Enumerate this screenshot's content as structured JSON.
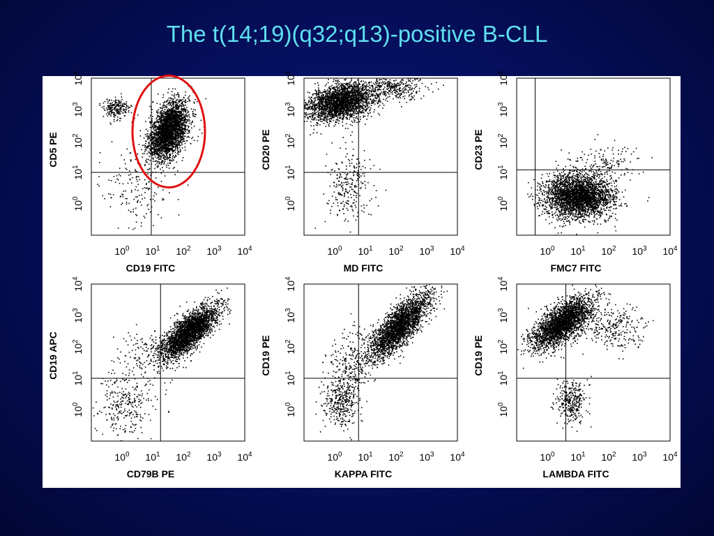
{
  "slide": {
    "title": "The t(14;19)(q32;q13)-positive B-CLL"
  },
  "colors": {
    "background": "#061060",
    "title": "#5fe0f0",
    "panel": "#ffffff",
    "dots": "#000000",
    "gate_ellipse": "#e01010"
  },
  "chart_data": [
    {
      "type": "scatter",
      "title": "",
      "xlabel": "CD19 FITC",
      "ylabel": "CD5 PE",
      "xlim": [
        0.1,
        10000
      ],
      "ylim": [
        0.1,
        10000
      ],
      "x_ticks": [
        "10^0",
        "10^1",
        "10^2",
        "10^3",
        "10^4"
      ],
      "y_ticks": [
        "10^0",
        "10^1",
        "10^2",
        "10^3",
        "10^4"
      ],
      "xscale": "log",
      "yscale": "log",
      "quadrant_gates": {
        "x": 9,
        "y": 10
      },
      "clusters": [
        {
          "x_center": 32,
          "y_center": 220,
          "x_spread": 0.32,
          "y_spread": 0.42,
          "tilt": 0.6,
          "weight": 0.88
        },
        {
          "x_center": 0.6,
          "y_center": 1200,
          "x_spread": 0.22,
          "y_spread": 0.15,
          "tilt": 0,
          "weight": 0.07
        },
        {
          "x_center": 3,
          "y_center": 3,
          "x_spread": 0.6,
          "y_spread": 0.6,
          "tilt": 0,
          "weight": 0.05
        }
      ],
      "annotation": {
        "shape": "ellipse",
        "color": "red",
        "center": [
          30,
          180
        ],
        "note": "gated B-CLL population"
      }
    },
    {
      "type": "scatter",
      "title": "",
      "xlabel": "MD FITC",
      "ylabel": "CD20 PE",
      "xlim": [
        0.1,
        10000
      ],
      "ylim": [
        0.1,
        10000
      ],
      "x_ticks": [
        "10^0",
        "10^1",
        "10^2",
        "10^3",
        "10^4"
      ],
      "y_ticks": [
        "10^0",
        "10^1",
        "10^2",
        "10^3",
        "10^4"
      ],
      "xscale": "log",
      "yscale": "log",
      "quadrant_gates": {
        "x": 6,
        "y": 10
      },
      "clusters": [
        {
          "x_center": 1.5,
          "y_center": 1800,
          "x_spread": 0.55,
          "y_spread": 0.28,
          "tilt": 0.2,
          "weight": 0.82
        },
        {
          "x_center": 3,
          "y_center": 4,
          "x_spread": 0.35,
          "y_spread": 0.55,
          "tilt": 0,
          "weight": 0.08
        },
        {
          "x_center": 100,
          "y_center": 5000,
          "x_spread": 0.45,
          "y_spread": 0.2,
          "tilt": 0,
          "weight": 0.1
        }
      ]
    },
    {
      "type": "scatter",
      "title": "",
      "xlabel": "FMC7 FITC",
      "ylabel": "CD23 PE",
      "xlim": [
        0.1,
        10000
      ],
      "ylim": [
        0.1,
        10000
      ],
      "x_ticks": [
        "10^0",
        "10^1",
        "10^2",
        "10^3",
        "10^4"
      ],
      "y_ticks": [
        "10^0",
        "10^1",
        "10^2",
        "10^3",
        "10^4"
      ],
      "xscale": "log",
      "yscale": "log",
      "quadrant_gates": {
        "x": 0.4,
        "y": 12
      },
      "clusters": [
        {
          "x_center": 10,
          "y_center": 1.8,
          "x_spread": 0.55,
          "y_spread": 0.35,
          "tilt": 0,
          "weight": 0.95
        },
        {
          "x_center": 80,
          "y_center": 20,
          "x_spread": 0.5,
          "y_spread": 0.35,
          "tilt": 0,
          "weight": 0.05
        }
      ]
    },
    {
      "type": "scatter",
      "title": "",
      "xlabel": "CD79B PE",
      "ylabel": "CD19 APC",
      "xlim": [
        0.1,
        10000
      ],
      "ylim": [
        0.1,
        10000
      ],
      "x_ticks": [
        "10^0",
        "10^1",
        "10^2",
        "10^3",
        "10^4"
      ],
      "y_ticks": [
        "10^0",
        "10^1",
        "10^2",
        "10^3",
        "10^4"
      ],
      "xscale": "log",
      "yscale": "log",
      "quadrant_gates": {
        "x": 18,
        "y": 10
      },
      "clusters": [
        {
          "x_center": 150,
          "y_center": 300,
          "x_spread": 0.45,
          "y_spread": 0.28,
          "tilt": 0.7,
          "weight": 0.86
        },
        {
          "x_center": 1.2,
          "y_center": 1.5,
          "x_spread": 0.45,
          "y_spread": 0.5,
          "tilt": 0,
          "weight": 0.09
        },
        {
          "x_center": 8,
          "y_center": 60,
          "x_spread": 0.5,
          "y_spread": 0.4,
          "tilt": 0,
          "weight": 0.05
        }
      ]
    },
    {
      "type": "scatter",
      "title": "",
      "xlabel": "KAPPA FITC",
      "ylabel": "CD19 PE",
      "xlim": [
        0.1,
        10000
      ],
      "ylim": [
        0.1,
        10000
      ],
      "x_ticks": [
        "10^0",
        "10^1",
        "10^2",
        "10^3",
        "10^4"
      ],
      "y_ticks": [
        "10^0",
        "10^1",
        "10^2",
        "10^3",
        "10^4"
      ],
      "xscale": "log",
      "yscale": "log",
      "quadrant_gates": {
        "x": 6,
        "y": 10
      },
      "clusters": [
        {
          "x_center": 120,
          "y_center": 450,
          "x_spread": 0.5,
          "y_spread": 0.32,
          "tilt": 0.85,
          "weight": 0.82
        },
        {
          "x_center": 1.5,
          "y_center": 1.8,
          "x_spread": 0.3,
          "y_spread": 0.35,
          "tilt": 0,
          "weight": 0.1
        },
        {
          "x_center": 3,
          "y_center": 25,
          "x_spread": 0.35,
          "y_spread": 0.55,
          "tilt": 0.3,
          "weight": 0.08
        }
      ]
    },
    {
      "type": "scatter",
      "title": "",
      "xlabel": "LAMBDA FITC",
      "ylabel": "CD19 PE",
      "xlim": [
        0.1,
        10000
      ],
      "ylim": [
        0.1,
        10000
      ],
      "x_ticks": [
        "10^0",
        "10^1",
        "10^2",
        "10^3",
        "10^4"
      ],
      "y_ticks": [
        "10^0",
        "10^1",
        "10^2",
        "10^3",
        "10^4"
      ],
      "xscale": "log",
      "yscale": "log",
      "quadrant_gates": {
        "x": 4,
        "y": 10
      },
      "clusters": [
        {
          "x_center": 3,
          "y_center": 600,
          "x_spread": 0.5,
          "y_spread": 0.3,
          "tilt": 0.55,
          "weight": 0.82
        },
        {
          "x_center": 6,
          "y_center": 2,
          "x_spread": 0.25,
          "y_spread": 0.35,
          "tilt": 0,
          "weight": 0.1
        },
        {
          "x_center": 150,
          "y_center": 400,
          "x_spread": 0.45,
          "y_spread": 0.35,
          "tilt": 0,
          "weight": 0.08
        }
      ]
    }
  ]
}
